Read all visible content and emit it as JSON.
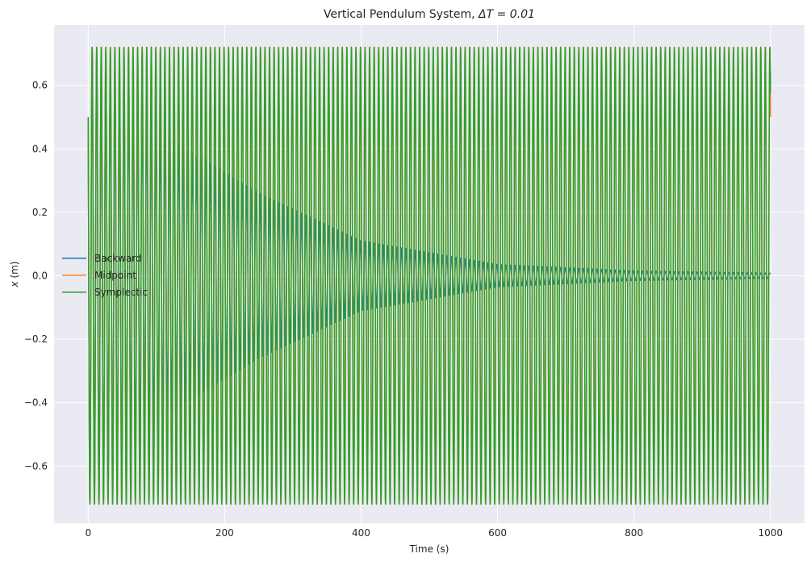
{
  "chart_data": {
    "type": "line",
    "title_main": "Vertical Pendulum System, ",
    "title_math": "ΔT = 0.01",
    "xlabel": "Time (s)",
    "ylabel_var": "x",
    "ylabel_unit": " (m)",
    "xlim": [
      -50,
      1050
    ],
    "ylim": [
      -0.78,
      0.79
    ],
    "xticks": [
      0,
      200,
      400,
      600,
      800,
      1000
    ],
    "xtick_labels": [
      "0",
      "200",
      "400",
      "600",
      "800",
      "1000"
    ],
    "yticks": [
      -0.6,
      -0.4,
      -0.2,
      0.0,
      0.2,
      0.4,
      0.6
    ],
    "ytick_labels": [
      "−0.6",
      "−0.4",
      "−0.2",
      "0.0",
      "0.2",
      "0.4",
      "0.6"
    ],
    "grid": true,
    "legend_position": "center-left",
    "series": [
      {
        "name": "Backward",
        "color": "#1f77b4",
        "x0": 0,
        "x1": 1000,
        "start": 0.5,
        "cycles": 150,
        "envelope": {
          "x": [
            0,
            90,
            120,
            250,
            400,
            600,
            800,
            1000
          ],
          "amp": [
            0.72,
            0.5,
            0.43,
            0.26,
            0.11,
            0.035,
            0.015,
            0.008
          ]
        }
      },
      {
        "name": "Midpoint",
        "color": "#ff7f0e",
        "x0": 0,
        "x1": 1000,
        "start": 0.5,
        "cycles": 150,
        "envelope": {
          "x": [
            0,
            1000
          ],
          "amp": [
            0.72,
            0.72
          ]
        }
      },
      {
        "name": "Symplectic",
        "color": "#2ca02c",
        "x0": 0,
        "x1": 1000,
        "start": 0.5,
        "end": 0.64,
        "cycles": 150,
        "envelope": {
          "x": [
            0,
            1000
          ],
          "amp": [
            0.72,
            0.72
          ]
        }
      }
    ]
  }
}
